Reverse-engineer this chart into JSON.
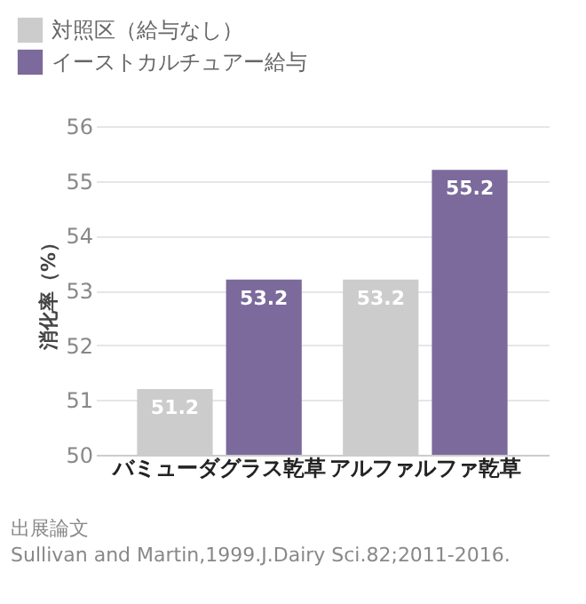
{
  "chart_data": {
    "type": "bar",
    "ylabel": "消化率（%）",
    "categories": [
      "バミューダグラス乾草",
      "アルファルファ乾草"
    ],
    "series": [
      {
        "name": "対照区（給与なし）",
        "color": "#cccccc",
        "values": [
          51.2,
          53.2
        ]
      },
      {
        "name": "イーストカルチュアー給与",
        "color": "#7b6a9b",
        "values": [
          53.2,
          55.2
        ]
      }
    ],
    "ylim": [
      50,
      56
    ],
    "yticks": [
      50,
      51,
      52,
      53,
      54,
      55,
      56
    ],
    "grid": "y",
    "legend": "top left",
    "data_labels": true,
    "annotations": [
      "出展論文",
      "Sullivan and Martin,1999.J.Dairy Sci.82;2011-2016."
    ]
  }
}
